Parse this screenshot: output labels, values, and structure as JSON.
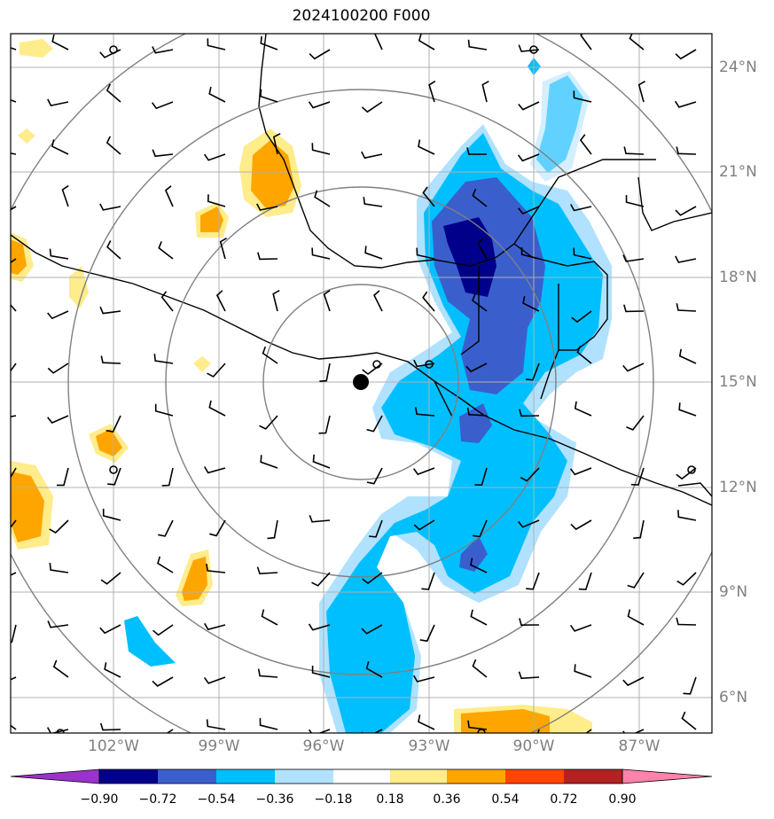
{
  "title": "2024100200 F000",
  "lat_labels": [
    "24°N",
    "21°N",
    "18°N",
    "15°N",
    "12°N",
    "9°N",
    "6°N"
  ],
  "lon_labels": [
    "102°W",
    "99°W",
    "96°W",
    "93°W",
    "90°W",
    "87°W"
  ],
  "colorbar": {
    "ticks": [
      "−0.90",
      "−0.72",
      "−0.54",
      "−0.36",
      "−0.18",
      "0.18",
      "0.36",
      "0.54",
      "0.72",
      "0.90"
    ],
    "colors": {
      "under": "#9a32cd",
      "bins": [
        "#00008b",
        "#3a5fcd",
        "#00bfff",
        "#b0e2ff",
        "#ffffff",
        "#ffec8b",
        "#ffa500",
        "#ff4500",
        "#b22222"
      ],
      "over": "#ff82ab"
    }
  },
  "colors": {
    "dark_blue": "#00008b",
    "medium_blue": "#3a5fcd",
    "sky_blue": "#00bfff",
    "light_blue": "#b0e2ff",
    "yellow": "#ffec8b",
    "orange": "#ffa500",
    "range_ring": "#808080",
    "grid": "#b0b0b0"
  },
  "storm_center": {
    "lat": 15.0,
    "lon": -95.0
  }
}
